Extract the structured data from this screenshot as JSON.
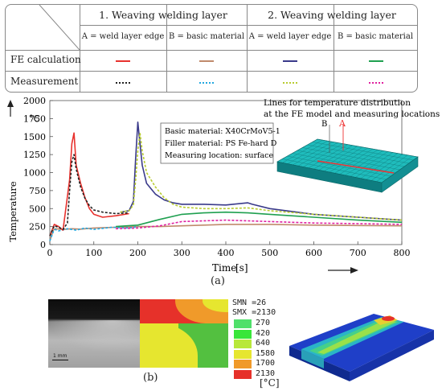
{
  "legend": {
    "group1": "1. Weaving welding layer",
    "group2": "2. Weaving welding layer",
    "colA1": "A = weld layer edge",
    "colB1": "B = basic  material",
    "colA2": "A = weld layer edge",
    "colB2": "B = basic  material",
    "row1": "FE calculation",
    "row2": "Measurement",
    "colors": {
      "fe_l1_A": "#e8322e",
      "fe_l1_B": "#c08a6c",
      "fe_l2_A": "#3a3a8a",
      "fe_l2_B": "#1fa050",
      "m_l1_A": "#222222",
      "m_l1_B": "#22a8e0",
      "m_l2_A": "#b8cc30",
      "m_l2_B": "#e020a0"
    }
  },
  "chart_data": {
    "type": "line",
    "ylabel": "Temperature",
    "yunit": "°C",
    "xlabel": "Time",
    "xunit": "[s]",
    "xlim": [
      0,
      800
    ],
    "ylim": [
      0,
      2000
    ],
    "xticks": [
      0,
      100,
      200,
      300,
      400,
      500,
      600,
      700,
      800
    ],
    "yticks": [
      0,
      250,
      500,
      750,
      1000,
      1250,
      1500,
      1750,
      2000
    ],
    "series": [
      {
        "key": "fe_l1_B",
        "dash": false,
        "x": [
          0,
          8,
          12,
          30,
          50,
          70,
          100,
          150,
          200,
          250,
          300,
          350,
          400,
          450,
          500,
          600,
          700,
          800
        ],
        "y": [
          50,
          200,
          220,
          210,
          220,
          215,
          230,
          240,
          250,
          250,
          260,
          270,
          280,
          280,
          280,
          270,
          265,
          260
        ]
      },
      {
        "key": "m_l1_B",
        "dash": true,
        "x": [
          0,
          8,
          12,
          20,
          40,
          60,
          80,
          100,
          140,
          180,
          200
        ],
        "y": [
          50,
          180,
          210,
          190,
          220,
          200,
          230,
          210,
          240,
          230,
          250
        ]
      },
      {
        "key": "m_l2_B",
        "dash": true,
        "x": [
          150,
          200,
          250,
          300,
          350,
          400,
          450,
          500,
          600,
          700,
          800
        ],
        "y": [
          220,
          230,
          260,
          320,
          330,
          340,
          330,
          320,
          300,
          290,
          280
        ]
      },
      {
        "key": "fe_l2_B",
        "dash": false,
        "x": [
          150,
          200,
          250,
          300,
          350,
          400,
          450,
          500,
          600,
          700,
          800
        ],
        "y": [
          250,
          270,
          350,
          420,
          440,
          450,
          440,
          420,
          380,
          340,
          310
        ]
      },
      {
        "key": "fe_l1_A",
        "dash": false,
        "x": [
          0,
          10,
          20,
          30,
          45,
          50,
          55,
          60,
          70,
          80,
          90,
          100,
          120,
          150,
          180
        ],
        "y": [
          120,
          280,
          250,
          200,
          900,
          1400,
          1550,
          1100,
          850,
          650,
          500,
          420,
          380,
          400,
          430
        ]
      },
      {
        "key": "m_l1_A",
        "dash": true,
        "x": [
          0,
          10,
          20,
          30,
          40,
          45,
          50,
          55,
          60,
          70,
          80,
          90,
          100,
          120,
          150,
          180
        ],
        "y": [
          120,
          260,
          240,
          210,
          300,
          750,
          1150,
          1250,
          1050,
          800,
          640,
          540,
          480,
          450,
          430,
          440
        ]
      },
      {
        "key": "fe_l2_A",
        "dash": false,
        "x": [
          160,
          180,
          190,
          195,
          200,
          205,
          210,
          220,
          240,
          260,
          280,
          300,
          350,
          400,
          450,
          460,
          500,
          600,
          700,
          800
        ],
        "y": [
          450,
          470,
          600,
          1200,
          1700,
          1400,
          1100,
          850,
          700,
          620,
          580,
          560,
          560,
          550,
          580,
          560,
          500,
          420,
          380,
          340
        ]
      },
      {
        "key": "m_l2_A",
        "dash": true,
        "x": [
          160,
          180,
          190,
          195,
          200,
          205,
          210,
          220,
          240,
          260,
          280,
          300,
          350,
          400,
          450,
          500,
          600,
          700,
          800
        ],
        "y": [
          450,
          470,
          550,
          900,
          1300,
          1550,
          1300,
          1000,
          800,
          650,
          560,
          520,
          500,
          500,
          510,
          470,
          420,
          380,
          340
        ]
      }
    ],
    "annotation_title": "Lines for temperature distribution\nat the FE model and measuring locations",
    "info": [
      "Basic material: X40CrMoV5-1",
      "Filler material: PS Fe-hard D",
      "Measuring location: surface"
    ],
    "marker_B": "B",
    "marker_A": "A"
  },
  "panel_a": "(a)",
  "panel_b": "(b)",
  "scalebar": "1 mm",
  "contour": {
    "smn": "SMN =26",
    "smx": "SMX =2130",
    "levels": [
      {
        "value": "270",
        "color": "#4fe06a"
      },
      {
        "value": "420",
        "color": "#39e639"
      },
      {
        "value": "640",
        "color": "#b8e83a"
      },
      {
        "value": "1580",
        "color": "#e6e62f"
      },
      {
        "value": "1700",
        "color": "#f09a2a"
      },
      {
        "value": "2130",
        "color": "#e6312a"
      }
    ],
    "unit": "[°C]"
  }
}
